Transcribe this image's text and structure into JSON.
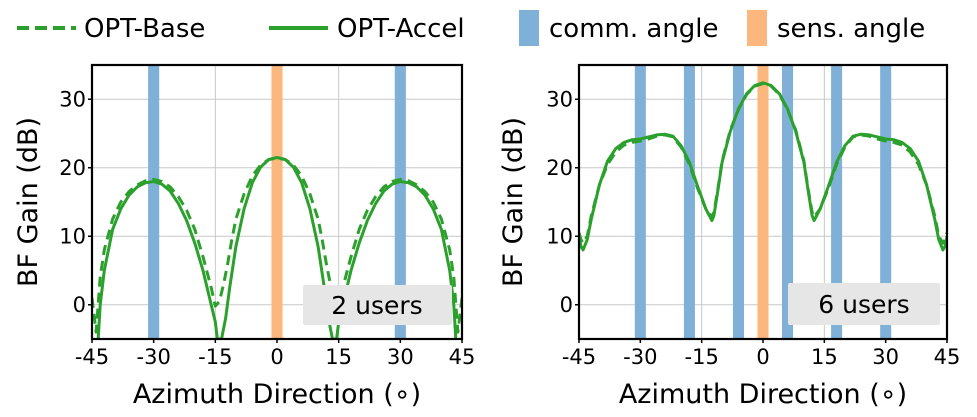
{
  "legend": {
    "items": [
      {
        "label": "OPT-Base",
        "style": "dashed"
      },
      {
        "label": "OPT-Accel",
        "style": "solid"
      },
      {
        "label": "comm. angle",
        "style": "band",
        "color": "#7fb0d8"
      },
      {
        "label": "sens. angle",
        "style": "band",
        "color": "#fcb77e"
      }
    ]
  },
  "colors": {
    "line": "#2ca02c",
    "comm": "#7fb0d8",
    "sens": "#fcb77e",
    "badge": "#e6e6e6"
  },
  "chart_data": [
    {
      "type": "line",
      "id": "left",
      "badge": "2 users",
      "xlabel": "Azimuth Direction (∘)",
      "ylabel": "BF Gain (dB)",
      "xlim": [
        -45,
        45
      ],
      "ylim": [
        -5,
        35
      ],
      "xticks": [
        -45,
        -30,
        -15,
        0,
        15,
        30,
        45
      ],
      "xtick_labels": [
        "-45",
        "-30",
        "-15",
        "0",
        "15",
        "30",
        "45"
      ],
      "yticks": [
        0,
        10,
        20,
        30
      ],
      "ytick_labels": [
        "0",
        "10",
        "20",
        "30"
      ],
      "comm_angles": [
        -30,
        30
      ],
      "sens_angles": [
        0
      ],
      "series": [
        {
          "name": "OPT-Base",
          "style": "dashed",
          "x": [
            -45,
            -44,
            -43,
            -42,
            -40,
            -38,
            -36,
            -34,
            -32,
            -30,
            -28,
            -26,
            -24,
            -22,
            -20,
            -18,
            -16,
            -15,
            -14,
            -13,
            -12,
            -11,
            -10,
            -8,
            -6,
            -4,
            -2,
            0,
            2,
            4,
            6,
            8,
            10,
            11,
            12,
            13,
            14,
            15,
            16,
            18,
            20,
            22,
            24,
            26,
            28,
            30,
            32,
            34,
            36,
            38,
            40,
            42,
            43,
            44,
            45
          ],
          "y": [
            1,
            -4,
            4,
            8,
            12.5,
            15,
            16.5,
            17.5,
            18.1,
            18.3,
            18.0,
            17.2,
            15.8,
            13.8,
            11,
            7,
            2.5,
            -0.2,
            0.5,
            3,
            6,
            9.5,
            12.5,
            16.2,
            18.8,
            20.4,
            21.2,
            21.4,
            21.2,
            20.4,
            18.8,
            16.2,
            12.5,
            9.5,
            6,
            3,
            0.5,
            -0.2,
            2.5,
            7,
            11,
            13.8,
            15.8,
            17.2,
            18.0,
            18.3,
            18.1,
            17.5,
            16.5,
            15,
            12.5,
            8,
            4,
            -4,
            1
          ]
        },
        {
          "name": "OPT-Accel",
          "style": "solid",
          "x": [
            -43.5,
            -43,
            -42,
            -40,
            -38,
            -36,
            -34,
            -32,
            -30,
            -28,
            -26,
            -24,
            -22,
            -20,
            -18,
            -16,
            -15,
            -14.5,
            -13.5,
            -12.5,
            -11.5,
            -10,
            -8,
            -6,
            -4,
            -2,
            0,
            2,
            4,
            6,
            8,
            10,
            11.5,
            12.5,
            13.5,
            14.5,
            15,
            16,
            18,
            20,
            22,
            24,
            26,
            28,
            30,
            32,
            34,
            36,
            38,
            40,
            42,
            43,
            43.5
          ],
          "y": [
            -5,
            0,
            5,
            11,
            14,
            16,
            17.2,
            17.8,
            18.0,
            17.6,
            16.6,
            14.8,
            12.3,
            9,
            5,
            0,
            -2.5,
            -5,
            -5,
            -2,
            2.5,
            8.5,
            14,
            17.8,
            20.1,
            21.2,
            21.5,
            21.2,
            20.1,
            17.8,
            14,
            8.5,
            2.5,
            -2,
            -5,
            -5,
            -2.5,
            0,
            5,
            9,
            12.3,
            14.8,
            16.6,
            17.6,
            18.0,
            17.8,
            17.2,
            16,
            14,
            11,
            5,
            0,
            -5
          ]
        }
      ]
    },
    {
      "type": "line",
      "id": "right",
      "badge": "6 users",
      "xlabel": "Azimuth Direction (∘)",
      "ylabel": "BF Gain (dB)",
      "xlim": [
        -45,
        45
      ],
      "ylim": [
        -5,
        35
      ],
      "xticks": [
        -45,
        -30,
        -15,
        0,
        15,
        30,
        45
      ],
      "xtick_labels": [
        "-45",
        "-30",
        "-15",
        "0",
        "15",
        "30",
        "45"
      ],
      "yticks": [
        0,
        10,
        20,
        30
      ],
      "ytick_labels": [
        "0",
        "10",
        "20",
        "30"
      ],
      "comm_angles": [
        -30,
        -18,
        -6,
        6,
        18,
        30
      ],
      "sens_angles": [
        0
      ],
      "series": [
        {
          "name": "OPT-Base",
          "style": "dashed",
          "x": [
            -45,
            -44.5,
            -44,
            -43,
            -42,
            -40,
            -38,
            -36,
            -34,
            -32,
            -30,
            -28,
            -26,
            -24,
            -22,
            -20,
            -18,
            -16,
            -14,
            -12.5,
            -12,
            -11,
            -10,
            -8,
            -6,
            -4,
            -2,
            0,
            2,
            4,
            6,
            8,
            10,
            11,
            12,
            12.5,
            14,
            16,
            18,
            20,
            22,
            24,
            26,
            28,
            30,
            32,
            34,
            36,
            38,
            40,
            42,
            43,
            44,
            44.5,
            45
          ],
          "y": [
            10.5,
            9.5,
            9,
            10,
            13,
            17.5,
            20.5,
            22.3,
            23.3,
            23.7,
            23.9,
            24.2,
            24.6,
            24.8,
            24.5,
            23,
            20.5,
            17,
            14,
            12.8,
            13.5,
            17,
            21,
            25.5,
            28.5,
            30.7,
            31.9,
            32.3,
            31.9,
            30.7,
            28.5,
            25.5,
            21,
            17,
            13.5,
            12.8,
            14,
            17,
            20.5,
            23,
            24.5,
            24.8,
            24.6,
            24.2,
            23.9,
            23.7,
            23.3,
            22.3,
            20.5,
            17.5,
            13,
            10,
            9,
            9.5,
            10.5
          ]
        },
        {
          "name": "OPT-Accel",
          "style": "solid",
          "x": [
            -45,
            -44.5,
            -44,
            -43,
            -42,
            -40,
            -38,
            -36,
            -34,
            -32,
            -30,
            -28,
            -26,
            -24,
            -22,
            -20,
            -18,
            -16,
            -14,
            -12.5,
            -12,
            -11,
            -10,
            -8,
            -6,
            -4,
            -2,
            0,
            2,
            4,
            6,
            8,
            10,
            11,
            12,
            12.5,
            14,
            16,
            18,
            20,
            22,
            24,
            26,
            28,
            30,
            32,
            34,
            36,
            38,
            40,
            42,
            43,
            44,
            44.5,
            45
          ],
          "y": [
            10,
            8.5,
            8,
            9.5,
            12.5,
            17.5,
            21,
            22.8,
            23.7,
            24.1,
            24.2,
            24.5,
            24.8,
            24.9,
            24.6,
            23.2,
            20.8,
            17.3,
            14,
            12.3,
            13,
            16.8,
            20.8,
            25.3,
            28.6,
            30.8,
            32,
            32.4,
            32,
            30.8,
            28.6,
            25.3,
            20.8,
            16.8,
            13,
            12.3,
            14,
            17.3,
            20.8,
            23.2,
            24.6,
            24.9,
            24.8,
            24.5,
            24.2,
            24.1,
            23.7,
            22.8,
            21,
            17.5,
            12.5,
            9.5,
            8,
            8.5,
            10
          ]
        }
      ]
    }
  ]
}
